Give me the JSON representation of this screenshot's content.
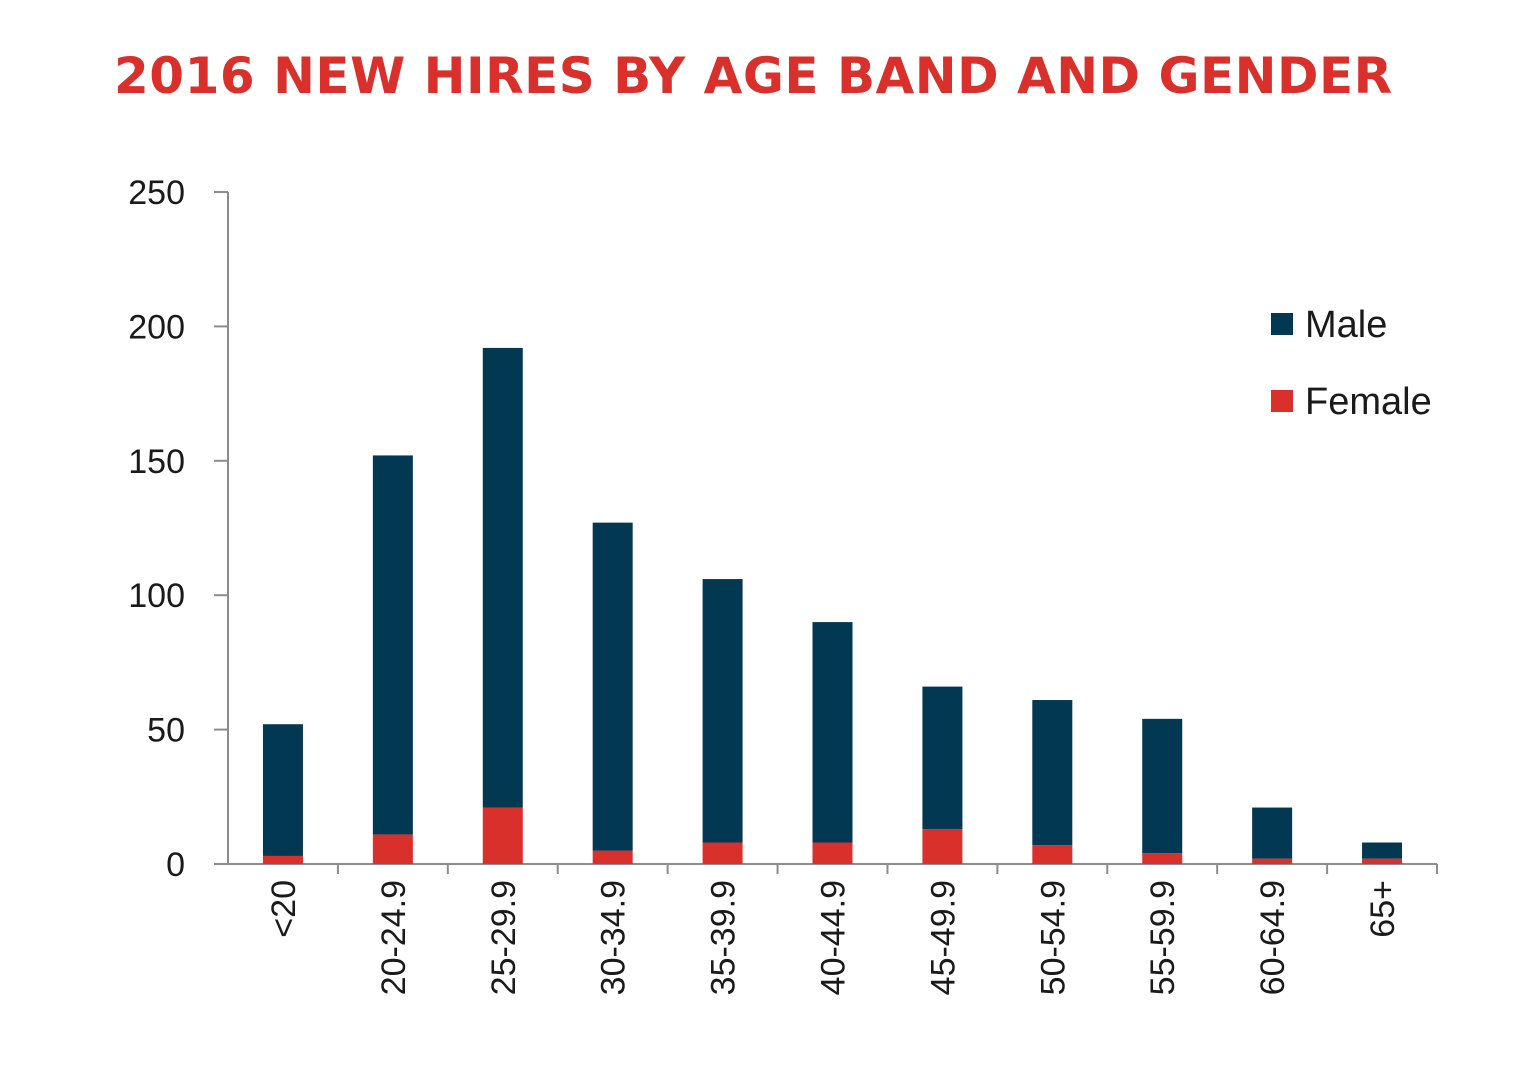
{
  "chart_data": {
    "type": "bar",
    "stacked": true,
    "title": "2016 NEW HIRES BY AGE BAND AND GENDER",
    "xlabel": "",
    "ylabel": "",
    "ylim": [
      0,
      250
    ],
    "yticks": [
      0,
      50,
      100,
      150,
      200,
      250
    ],
    "categories": [
      "<20",
      "20-24.9",
      "25-29.9",
      "30-34.9",
      "35-39.9",
      "40-44.9",
      "45-49.9",
      "50-54.9",
      "55-59.9",
      "60-64.9",
      "65+"
    ],
    "series": [
      {
        "name": "Female",
        "color": "#d9302c",
        "values": [
          3,
          11,
          21,
          5,
          8,
          8,
          13,
          7,
          4,
          2,
          2
        ]
      },
      {
        "name": "Male",
        "color": "#033853",
        "values": [
          49,
          141,
          171,
          122,
          98,
          82,
          53,
          54,
          50,
          19,
          6
        ]
      }
    ],
    "legend": {
      "placement": "right",
      "order": [
        "Male",
        "Female"
      ]
    },
    "grid": false
  },
  "colors": {
    "title": "#d9302c",
    "male": "#033853",
    "female": "#d9302c",
    "axis": "#8c8c8c",
    "text": "#1a1a1a"
  }
}
